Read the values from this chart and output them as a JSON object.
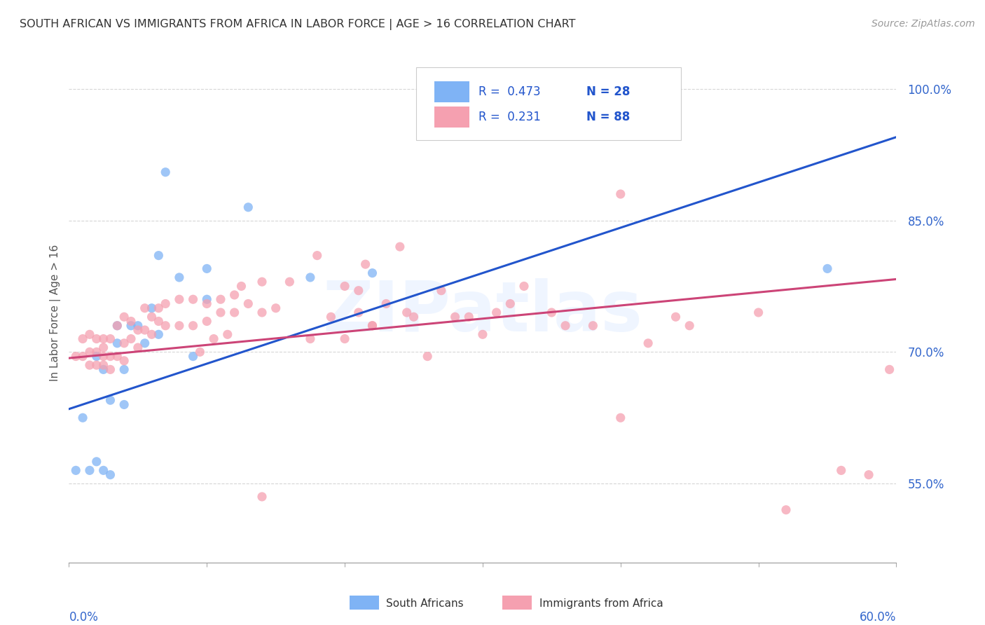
{
  "title": "SOUTH AFRICAN VS IMMIGRANTS FROM AFRICA IN LABOR FORCE | AGE > 16 CORRELATION CHART",
  "source": "Source: ZipAtlas.com",
  "ylabel": "In Labor Force | Age > 16",
  "xmin": 0.0,
  "xmax": 0.6,
  "ymin": 0.46,
  "ymax": 1.03,
  "yticks": [
    0.55,
    0.7,
    0.85,
    1.0
  ],
  "ytick_labels": [
    "55.0%",
    "70.0%",
    "85.0%",
    "100.0%"
  ],
  "legend_blue_R": "R =  0.473",
  "legend_blue_N": "N = 28",
  "legend_pink_R": "R =  0.231",
  "legend_pink_N": "N = 88",
  "blue_scatter_color": "#7fb3f5",
  "pink_scatter_color": "#f5a0b0",
  "blue_line_color": "#2255cc",
  "pink_line_color": "#cc4477",
  "legend_text_color": "#2255cc",
  "axis_label_color": "#3366cc",
  "title_color": "#333333",
  "grid_color": "#cccccc",
  "watermark_text": "ZIPatlas",
  "south_africans_label": "South Africans",
  "immigrants_label": "Immigrants from Africa",
  "blue_scatter_x": [
    0.005,
    0.01,
    0.015,
    0.02,
    0.02,
    0.025,
    0.025,
    0.03,
    0.03,
    0.035,
    0.035,
    0.04,
    0.04,
    0.045,
    0.05,
    0.055,
    0.06,
    0.065,
    0.065,
    0.07,
    0.08,
    0.09,
    0.1,
    0.1,
    0.13,
    0.175,
    0.22,
    0.55
  ],
  "blue_scatter_y": [
    0.565,
    0.625,
    0.565,
    0.575,
    0.695,
    0.68,
    0.565,
    0.56,
    0.645,
    0.73,
    0.71,
    0.64,
    0.68,
    0.73,
    0.73,
    0.71,
    0.75,
    0.81,
    0.72,
    0.905,
    0.785,
    0.695,
    0.76,
    0.795,
    0.865,
    0.785,
    0.79,
    0.795
  ],
  "pink_scatter_x": [
    0.005,
    0.01,
    0.01,
    0.015,
    0.015,
    0.015,
    0.02,
    0.02,
    0.02,
    0.025,
    0.025,
    0.025,
    0.025,
    0.03,
    0.03,
    0.03,
    0.035,
    0.035,
    0.04,
    0.04,
    0.04,
    0.045,
    0.045,
    0.05,
    0.05,
    0.055,
    0.055,
    0.06,
    0.06,
    0.065,
    0.065,
    0.07,
    0.07,
    0.08,
    0.08,
    0.09,
    0.09,
    0.095,
    0.1,
    0.1,
    0.105,
    0.11,
    0.11,
    0.115,
    0.12,
    0.12,
    0.125,
    0.13,
    0.14,
    0.14,
    0.15,
    0.16,
    0.175,
    0.18,
    0.19,
    0.2,
    0.2,
    0.21,
    0.21,
    0.215,
    0.22,
    0.23,
    0.24,
    0.245,
    0.25,
    0.26,
    0.27,
    0.28,
    0.29,
    0.3,
    0.31,
    0.32,
    0.33,
    0.35,
    0.36,
    0.38,
    0.4,
    0.42,
    0.44,
    0.45,
    0.5,
    0.52,
    0.56,
    0.58,
    0.595,
    0.14,
    0.22,
    0.4
  ],
  "pink_scatter_y": [
    0.695,
    0.695,
    0.715,
    0.685,
    0.7,
    0.72,
    0.685,
    0.7,
    0.715,
    0.685,
    0.695,
    0.705,
    0.715,
    0.68,
    0.695,
    0.715,
    0.695,
    0.73,
    0.69,
    0.71,
    0.74,
    0.715,
    0.735,
    0.705,
    0.725,
    0.725,
    0.75,
    0.72,
    0.74,
    0.735,
    0.75,
    0.73,
    0.755,
    0.73,
    0.76,
    0.73,
    0.76,
    0.7,
    0.735,
    0.755,
    0.715,
    0.745,
    0.76,
    0.72,
    0.745,
    0.765,
    0.775,
    0.755,
    0.745,
    0.78,
    0.75,
    0.78,
    0.715,
    0.81,
    0.74,
    0.775,
    0.715,
    0.745,
    0.77,
    0.8,
    0.73,
    0.755,
    0.82,
    0.745,
    0.74,
    0.695,
    0.77,
    0.74,
    0.74,
    0.72,
    0.745,
    0.755,
    0.775,
    0.745,
    0.73,
    0.73,
    0.88,
    0.71,
    0.74,
    0.73,
    0.745,
    0.52,
    0.565,
    0.56,
    0.68,
    0.535,
    0.73,
    0.625
  ],
  "blue_trend_x": [
    0.0,
    0.6
  ],
  "blue_trend_y": [
    0.635,
    0.945
  ],
  "pink_trend_x": [
    0.0,
    0.6
  ],
  "pink_trend_y": [
    0.693,
    0.783
  ]
}
